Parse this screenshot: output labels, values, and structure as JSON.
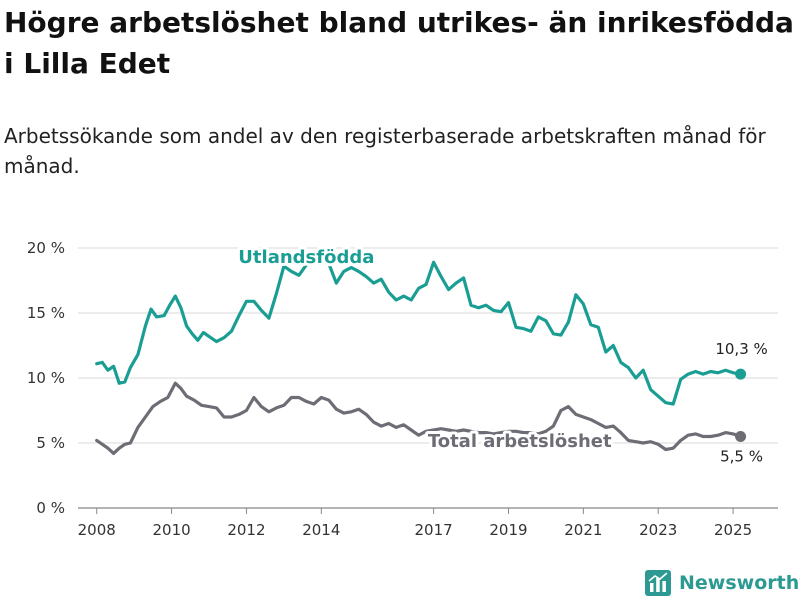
{
  "title": "Högre arbetslöshet bland utrikes- än inrikesfödda i Lilla Edet",
  "subtitle": "Arbetssökande som andel av den registerbaserade arbetskraften månad för månad.",
  "brand": {
    "name": "Newsworthy",
    "icon": "bar-chart-logo-icon",
    "color": "#2c9a93"
  },
  "chart_data": {
    "type": "line",
    "title": "Högre arbetslöshet bland utrikes- än inrikesfödda i Lilla Edet",
    "subtitle": "Arbetssökande som andel av den registerbaserade arbetskraften månad för månad.",
    "xlabel": "",
    "ylabel": "",
    "x_range": [
      2007.5,
      2026.2
    ],
    "ylim": [
      0,
      20
    ],
    "y_ticks": [
      0,
      5,
      10,
      15,
      20
    ],
    "y_tick_labels": [
      "0 %",
      "5 %",
      "10 %",
      "15 %",
      "20 %"
    ],
    "x_ticks": [
      2008,
      2010,
      2012,
      2014,
      2017,
      2019,
      2021,
      2023,
      2025
    ],
    "x_tick_labels": [
      "2008",
      "2010",
      "2012",
      "2014",
      "2017",
      "2019",
      "2021",
      "2023",
      "2025"
    ],
    "grid": "horizontal",
    "legend": "direct labels on lines",
    "series": [
      {
        "name": "Utlandsfödda",
        "color": "#1a9e93",
        "end_label": "10,3 %",
        "points": [
          [
            2008.0,
            11.1
          ],
          [
            2008.15,
            11.2
          ],
          [
            2008.3,
            10.6
          ],
          [
            2008.45,
            10.9
          ],
          [
            2008.6,
            9.6
          ],
          [
            2008.75,
            9.7
          ],
          [
            2008.9,
            10.8
          ],
          [
            2009.1,
            11.8
          ],
          [
            2009.3,
            14.0
          ],
          [
            2009.45,
            15.3
          ],
          [
            2009.6,
            14.7
          ],
          [
            2009.8,
            14.8
          ],
          [
            2009.95,
            15.6
          ],
          [
            2010.1,
            16.3
          ],
          [
            2010.25,
            15.4
          ],
          [
            2010.4,
            14.0
          ],
          [
            2010.55,
            13.4
          ],
          [
            2010.7,
            12.9
          ],
          [
            2010.85,
            13.5
          ],
          [
            2011.0,
            13.2
          ],
          [
            2011.2,
            12.8
          ],
          [
            2011.4,
            13.1
          ],
          [
            2011.6,
            13.6
          ],
          [
            2011.8,
            14.8
          ],
          [
            2012.0,
            15.9
          ],
          [
            2012.2,
            15.9
          ],
          [
            2012.4,
            15.2
          ],
          [
            2012.6,
            14.6
          ],
          [
            2012.8,
            16.5
          ],
          [
            2013.0,
            18.6
          ],
          [
            2013.2,
            18.2
          ],
          [
            2013.4,
            17.9
          ],
          [
            2013.6,
            18.7
          ],
          [
            2013.8,
            19.1
          ],
          [
            2014.0,
            19.2
          ],
          [
            2014.2,
            18.8
          ],
          [
            2014.4,
            17.3
          ],
          [
            2014.6,
            18.2
          ],
          [
            2014.8,
            18.5
          ],
          [
            2015.0,
            18.2
          ],
          [
            2015.2,
            17.8
          ],
          [
            2015.4,
            17.3
          ],
          [
            2015.6,
            17.6
          ],
          [
            2015.8,
            16.6
          ],
          [
            2016.0,
            16.0
          ],
          [
            2016.2,
            16.3
          ],
          [
            2016.4,
            16.0
          ],
          [
            2016.6,
            16.9
          ],
          [
            2016.8,
            17.2
          ],
          [
            2017.0,
            18.9
          ],
          [
            2017.2,
            17.8
          ],
          [
            2017.4,
            16.8
          ],
          [
            2017.6,
            17.3
          ],
          [
            2017.8,
            17.7
          ],
          [
            2018.0,
            15.6
          ],
          [
            2018.2,
            15.4
          ],
          [
            2018.4,
            15.6
          ],
          [
            2018.6,
            15.2
          ],
          [
            2018.8,
            15.1
          ],
          [
            2019.0,
            15.8
          ],
          [
            2019.2,
            13.9
          ],
          [
            2019.4,
            13.8
          ],
          [
            2019.6,
            13.6
          ],
          [
            2019.8,
            14.7
          ],
          [
            2020.0,
            14.4
          ],
          [
            2020.2,
            13.4
          ],
          [
            2020.4,
            13.3
          ],
          [
            2020.6,
            14.3
          ],
          [
            2020.8,
            16.4
          ],
          [
            2021.0,
            15.7
          ],
          [
            2021.2,
            14.1
          ],
          [
            2021.4,
            13.9
          ],
          [
            2021.6,
            12.0
          ],
          [
            2021.8,
            12.5
          ],
          [
            2022.0,
            11.2
          ],
          [
            2022.2,
            10.8
          ],
          [
            2022.4,
            10.0
          ],
          [
            2022.6,
            10.6
          ],
          [
            2022.8,
            9.1
          ],
          [
            2023.0,
            8.6
          ],
          [
            2023.2,
            8.1
          ],
          [
            2023.4,
            8.0
          ],
          [
            2023.6,
            9.9
          ],
          [
            2023.8,
            10.3
          ],
          [
            2024.0,
            10.5
          ],
          [
            2024.2,
            10.3
          ],
          [
            2024.4,
            10.5
          ],
          [
            2024.6,
            10.4
          ],
          [
            2024.8,
            10.6
          ],
          [
            2025.0,
            10.4
          ],
          [
            2025.2,
            10.3
          ]
        ]
      },
      {
        "name": "Total arbetslöshet",
        "color": "#6e6d75",
        "end_label": "5,5 %",
        "points": [
          [
            2008.0,
            5.2
          ],
          [
            2008.15,
            4.9
          ],
          [
            2008.3,
            4.6
          ],
          [
            2008.45,
            4.2
          ],
          [
            2008.6,
            4.6
          ],
          [
            2008.75,
            4.9
          ],
          [
            2008.9,
            5.0
          ],
          [
            2009.1,
            6.2
          ],
          [
            2009.3,
            7.0
          ],
          [
            2009.5,
            7.8
          ],
          [
            2009.7,
            8.2
          ],
          [
            2009.9,
            8.5
          ],
          [
            2010.1,
            9.6
          ],
          [
            2010.25,
            9.2
          ],
          [
            2010.4,
            8.6
          ],
          [
            2010.6,
            8.3
          ],
          [
            2010.8,
            7.9
          ],
          [
            2011.0,
            7.8
          ],
          [
            2011.2,
            7.7
          ],
          [
            2011.4,
            7.0
          ],
          [
            2011.6,
            7.0
          ],
          [
            2011.8,
            7.2
          ],
          [
            2012.0,
            7.5
          ],
          [
            2012.2,
            8.5
          ],
          [
            2012.4,
            7.8
          ],
          [
            2012.6,
            7.4
          ],
          [
            2012.8,
            7.7
          ],
          [
            2013.0,
            7.9
          ],
          [
            2013.2,
            8.5
          ],
          [
            2013.4,
            8.5
          ],
          [
            2013.6,
            8.2
          ],
          [
            2013.8,
            8.0
          ],
          [
            2014.0,
            8.5
          ],
          [
            2014.2,
            8.3
          ],
          [
            2014.4,
            7.6
          ],
          [
            2014.6,
            7.3
          ],
          [
            2014.8,
            7.4
          ],
          [
            2015.0,
            7.6
          ],
          [
            2015.2,
            7.2
          ],
          [
            2015.4,
            6.6
          ],
          [
            2015.6,
            6.3
          ],
          [
            2015.8,
            6.5
          ],
          [
            2016.0,
            6.2
          ],
          [
            2016.2,
            6.4
          ],
          [
            2016.4,
            6.0
          ],
          [
            2016.6,
            5.6
          ],
          [
            2016.8,
            5.9
          ],
          [
            2017.0,
            6.0
          ],
          [
            2017.2,
            6.1
          ],
          [
            2017.4,
            6.0
          ],
          [
            2017.6,
            5.9
          ],
          [
            2017.8,
            6.0
          ],
          [
            2018.0,
            5.9
          ],
          [
            2018.2,
            5.8
          ],
          [
            2018.4,
            5.8
          ],
          [
            2018.6,
            5.7
          ],
          [
            2018.8,
            5.8
          ],
          [
            2019.0,
            5.9
          ],
          [
            2019.2,
            5.9
          ],
          [
            2019.4,
            5.8
          ],
          [
            2019.6,
            5.8
          ],
          [
            2019.8,
            5.7
          ],
          [
            2020.0,
            5.9
          ],
          [
            2020.2,
            6.3
          ],
          [
            2020.4,
            7.5
          ],
          [
            2020.6,
            7.8
          ],
          [
            2020.8,
            7.2
          ],
          [
            2021.0,
            7.0
          ],
          [
            2021.2,
            6.8
          ],
          [
            2021.4,
            6.5
          ],
          [
            2021.6,
            6.2
          ],
          [
            2021.8,
            6.3
          ],
          [
            2022.0,
            5.8
          ],
          [
            2022.2,
            5.2
          ],
          [
            2022.4,
            5.1
          ],
          [
            2022.6,
            5.0
          ],
          [
            2022.8,
            5.1
          ],
          [
            2023.0,
            4.9
          ],
          [
            2023.2,
            4.5
          ],
          [
            2023.4,
            4.6
          ],
          [
            2023.6,
            5.2
          ],
          [
            2023.8,
            5.6
          ],
          [
            2024.0,
            5.7
          ],
          [
            2024.2,
            5.5
          ],
          [
            2024.4,
            5.5
          ],
          [
            2024.6,
            5.6
          ],
          [
            2024.8,
            5.8
          ],
          [
            2025.0,
            5.7
          ],
          [
            2025.2,
            5.5
          ]
        ]
      }
    ],
    "annotations": [
      {
        "text": "Utlandsfödda",
        "series": 0,
        "color": "#1a9e93"
      },
      {
        "text": "Total arbetslöshet",
        "series": 1,
        "color": "#6e6d75"
      }
    ]
  }
}
